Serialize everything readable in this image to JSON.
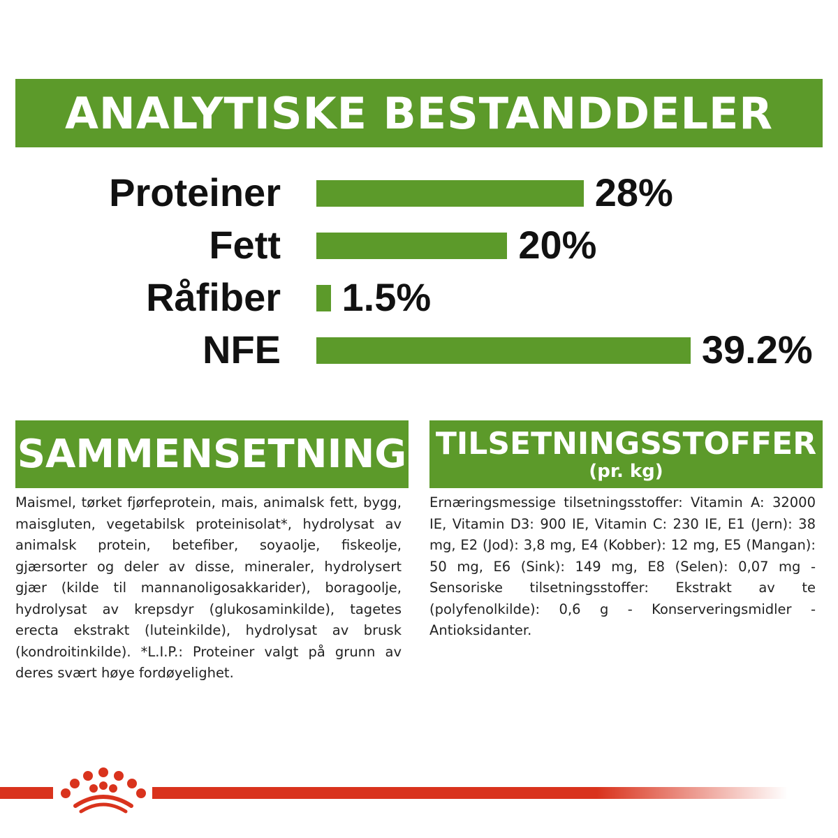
{
  "title": "ANALYTISKE BESTANDDELER",
  "analytics": [
    {
      "label": "Proteiner",
      "value": "28%",
      "percent": 28
    },
    {
      "label": "Fett",
      "value": "20%",
      "percent": 20
    },
    {
      "label": "Råfiber",
      "value": "1.5%",
      "percent": 1.5
    },
    {
      "label": "NFE",
      "value": "39.2%",
      "percent": 39.2
    }
  ],
  "composition": {
    "heading": "SAMMENSETNING",
    "text": "Maismel, tørket fjørfeprotein, mais, animalsk fett, bygg, maisgluten, vegetabilsk proteinisolat*, hydrolysat av animalsk protein, betefiber, soyaolje, fiskeolje, gjærsorter og deler av disse, mineraler, hydrolysert gjær (kilde til mannanoligosakkarider), boragoolje, hydrolysat av krepsdyr (glukosaminkilde), tagetes erecta ekstrakt (luteinkilde), hydrolysat av brusk (kondroitinkilde). *L.I.P.: Proteiner valgt på grunn av deres svært høye fordøyelighet."
  },
  "additives": {
    "heading": "TILSETNINGSSTOFFER",
    "subheading": "(pr. kg)",
    "text": "Ernæringsmessige tilsetningsstoffer: Vitamin A: 32000 IE, Vitamin D3: 900 IE, Vitamin C: 230 IE, E1 (Jern): 38 mg, E2 (Jod): 3,8 mg, E4 (Kobber): 12 mg, E5 (Mangan): 50 mg, E6 (Sink): 149 mg, E8 (Selen): 0,07 mg - Sensoriske tilsetningsstoffer: Ekstrakt av te (polyfenolkilde): 0,6 g - Konserveringsmidler - Antioksidanter."
  },
  "colors": {
    "accent": "#5c9a2a",
    "brand_red": "#d9331d"
  },
  "logo": "royal-canin-crown-icon"
}
